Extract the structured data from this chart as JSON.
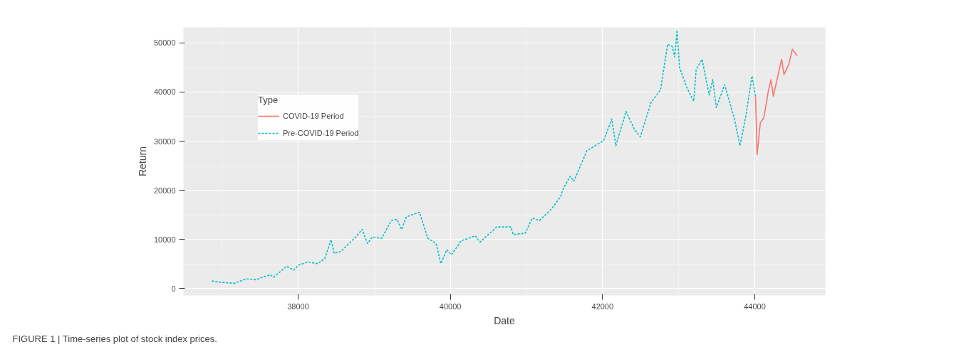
{
  "chart_data": {
    "type": "line",
    "xlabel": "Date",
    "ylabel": "Return",
    "xlim": [
      36493,
      44927
    ],
    "ylim": [
      -1395,
      53150
    ],
    "xticks": [
      38000,
      40000,
      42000,
      44000
    ],
    "yticks": [
      0,
      10000,
      20000,
      30000,
      40000,
      50000
    ],
    "grid": true,
    "legend": "top left",
    "legend_title": "Type",
    "annotations": [
      "FIGURE 1 | Time-series plot of stock index prices."
    ],
    "series": [
      {
        "name": "COVID-19 Period",
        "color": "#f8766d",
        "line_style": "solid",
        "x": [
          44010,
          44031,
          44073,
          44119,
          44181,
          44213,
          44244,
          44353,
          44384,
          44447,
          44494,
          44556
        ],
        "values": [
          39150,
          27270,
          33730,
          34750,
          40440,
          42500,
          39150,
          46640,
          43540,
          45600,
          48700,
          47410
        ]
      },
      {
        "name": "Pre-COVID-19 Period",
        "color": "#00bfc4",
        "line_style": "dashed",
        "x": [
          36867,
          36977,
          37164,
          37319,
          37445,
          37632,
          37679,
          37850,
          37944,
          38007,
          38131,
          38256,
          38349,
          38433,
          38475,
          38568,
          38755,
          38842,
          38911,
          38974,
          39098,
          39224,
          39298,
          39360,
          39423,
          39594,
          39704,
          39813,
          39875,
          39954,
          40015,
          40141,
          40328,
          40390,
          40609,
          40796,
          40827,
          40983,
          41077,
          41171,
          41326,
          41451,
          41482,
          41576,
          41623,
          41794,
          42013,
          42122,
          42175,
          42309,
          42418,
          42496,
          42637,
          42762,
          42824,
          42856,
          42917,
          42949,
          42980,
          43011,
          43105,
          43198,
          43230,
          43308,
          43401,
          43448,
          43495,
          43604,
          43729,
          43807,
          43885,
          43963,
          44010
        ],
        "values": [
          1550,
          1290,
          1080,
          1970,
          1810,
          2840,
          2320,
          4540,
          3770,
          4800,
          5420,
          5070,
          6090,
          9960,
          7130,
          7640,
          10490,
          12040,
          9190,
          10490,
          10230,
          13840,
          14100,
          12040,
          14610,
          15540,
          10230,
          9190,
          5070,
          7900,
          6860,
          9710,
          10740,
          9450,
          12550,
          12550,
          11000,
          11260,
          14360,
          13840,
          16160,
          18750,
          20300,
          22880,
          21850,
          28040,
          30100,
          34500,
          29080,
          36050,
          32430,
          30880,
          37850,
          40440,
          46640,
          49730,
          49220,
          47150,
          52570,
          45090,
          40950,
          38110,
          44580,
          46640,
          39400,
          42500,
          36830,
          41480,
          34750,
          29080,
          35280,
          43270,
          39150
        ]
      }
    ]
  }
}
